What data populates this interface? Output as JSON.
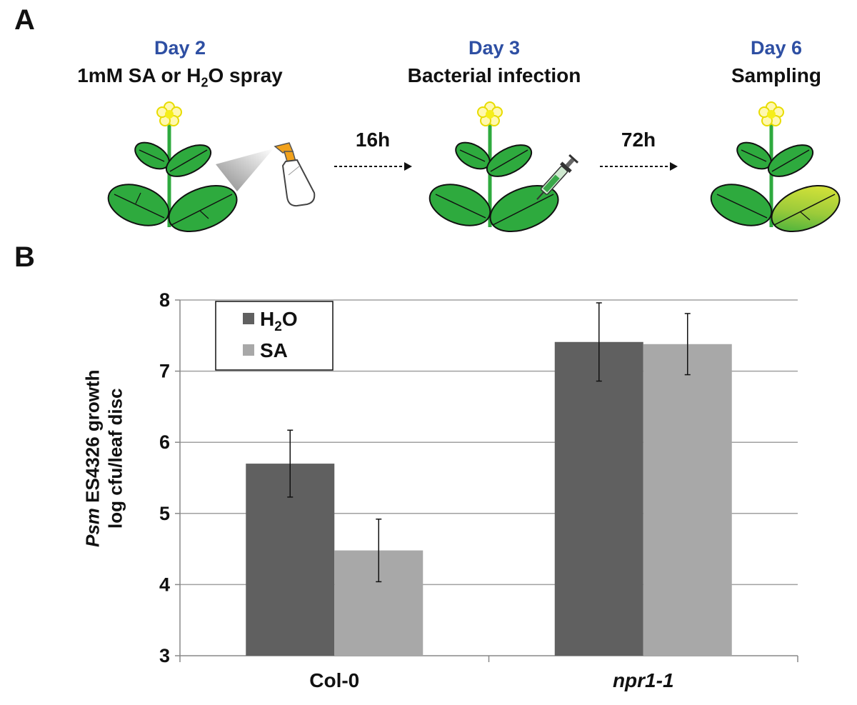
{
  "panel_a": {
    "label": "A",
    "steps": [
      {
        "day": "Day 2",
        "action_prefix": "1mM SA or H",
        "action_sub": "2",
        "action_suffix": "O spray"
      },
      {
        "day": "Day 3",
        "action": "Bacterial infection"
      },
      {
        "day": "Day 6",
        "action": "Sampling"
      }
    ],
    "intervals": [
      "16h",
      "72h"
    ],
    "colors": {
      "day_text": "#2e4fa3",
      "leaf": "#2eaa3e",
      "stem": "#2eaa3e",
      "flower": "#f5ee1a",
      "arrow": "#111111"
    }
  },
  "panel_b": {
    "label": "B"
  },
  "chart_data": {
    "type": "bar",
    "categories": [
      "Col-0",
      "npr1-1"
    ],
    "category_italic": [
      false,
      true
    ],
    "series": [
      {
        "name": "H2O",
        "name_base": "H",
        "name_sub": "2",
        "name_suffix": "O",
        "values": [
          5.7,
          7.41
        ],
        "error": [
          0.47,
          0.55
        ],
        "color": "#606060"
      },
      {
        "name": "SA",
        "values": [
          4.48,
          7.38
        ],
        "error": [
          0.44,
          0.43
        ],
        "color": "#a8a8a8"
      }
    ],
    "ylabel_italic": "Psm",
    "ylabel_rest": " ES4326 growth",
    "ylabel_line2": "log cfu/leaf disc",
    "xlabel": "",
    "ylim": [
      3,
      8
    ],
    "yticks": [
      3,
      4,
      5,
      6,
      7,
      8
    ],
    "grid": true,
    "legend_position": "top-left"
  }
}
